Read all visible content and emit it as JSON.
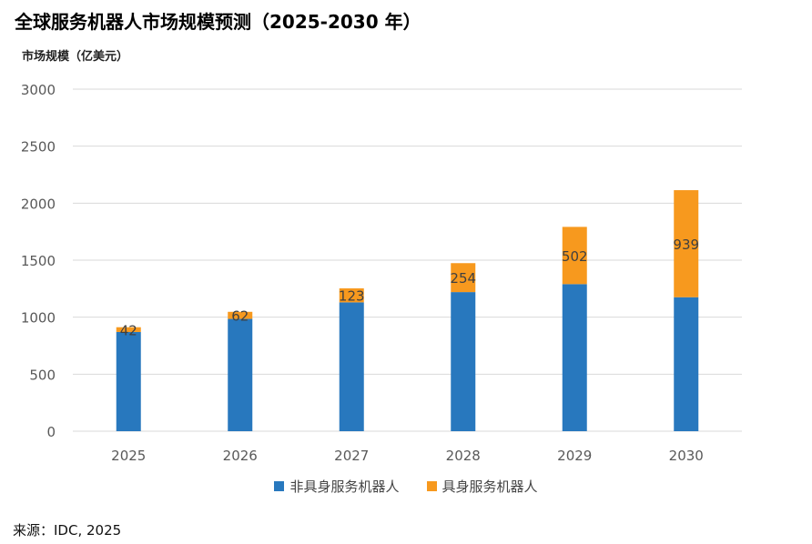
{
  "title": "全球服务机器人市场规模预测（2025-2030 年）",
  "unit_label": "市场规模（亿美元）",
  "source": "来源：IDC, 2025",
  "colors": {
    "non_embodied": "#2878BE",
    "embodied": "#F7991E",
    "grid": "#D9D9D9",
    "tick_text": "#595959",
    "data_label": "#404040"
  },
  "chart_data": {
    "type": "bar",
    "stacked": true,
    "categories": [
      "2025",
      "2026",
      "2027",
      "2028",
      "2029",
      "2030"
    ],
    "series": [
      {
        "name": "非具身服务机器人",
        "values": [
          870,
          985,
          1130,
          1220,
          1290,
          1175
        ]
      },
      {
        "name": "具身服务机器人",
        "values": [
          42,
          62,
          123,
          254,
          502,
          939
        ]
      }
    ],
    "data_labels": [
      "42",
      "62",
      "123",
      "254",
      "502",
      "939"
    ],
    "ylim": [
      0,
      3000
    ],
    "yticks": [
      0,
      500,
      1000,
      1500,
      2000,
      2500,
      3000
    ],
    "grid": true,
    "legend_position": "bottom"
  }
}
